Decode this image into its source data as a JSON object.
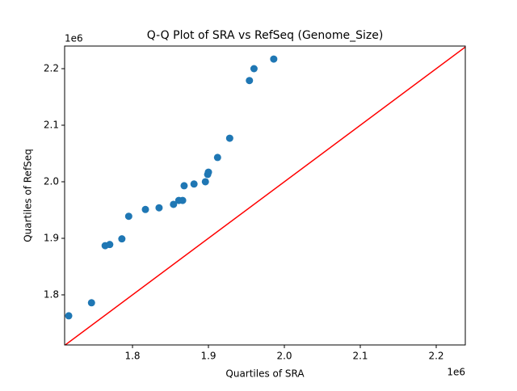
{
  "chart_data": {
    "type": "scatter",
    "title": "Q-Q Plot of SRA vs RefSeq (Genome_Size)",
    "x_label": "Quartiles of SRA",
    "y_label": "Quartiles of RefSeq",
    "x_offset_label": "1e6",
    "y_offset_label": "1e6",
    "xlim": [
      1710600,
      2238300
    ],
    "ylim": [
      1711400,
      2240000
    ],
    "xticks": [
      {
        "value": 1800000,
        "label": "1.8"
      },
      {
        "value": 1900000,
        "label": "1.9"
      },
      {
        "value": 2000000,
        "label": "2.0"
      },
      {
        "value": 2100000,
        "label": "2.1"
      },
      {
        "value": 2200000,
        "label": "2.2"
      }
    ],
    "yticks": [
      {
        "value": 1800000,
        "label": "1.8"
      },
      {
        "value": 1900000,
        "label": "1.9"
      },
      {
        "value": 2000000,
        "label": "2.0"
      },
      {
        "value": 2100000,
        "label": "2.1"
      },
      {
        "value": 2200000,
        "label": "2.2"
      }
    ],
    "color": "#1f77b4",
    "reference_line_color": "#ff0000",
    "x": [
      1716000,
      1746000,
      1764000,
      1770000,
      1786000,
      1795000,
      1817000,
      1835000,
      1854000,
      1861000,
      1866000,
      1868000,
      1881000,
      1896000,
      1899000,
      1900000,
      1912000,
      1928000,
      1954000,
      1960000,
      1986000
    ],
    "values": [
      1763000,
      1786000,
      1887000,
      1889000,
      1899000,
      1939000,
      1951000,
      1954000,
      1960000,
      1967000,
      1967000,
      1993000,
      1996000,
      2000000,
      2013000,
      2017000,
      2043000,
      2077000,
      2179000,
      2200000,
      2217000
    ]
  }
}
